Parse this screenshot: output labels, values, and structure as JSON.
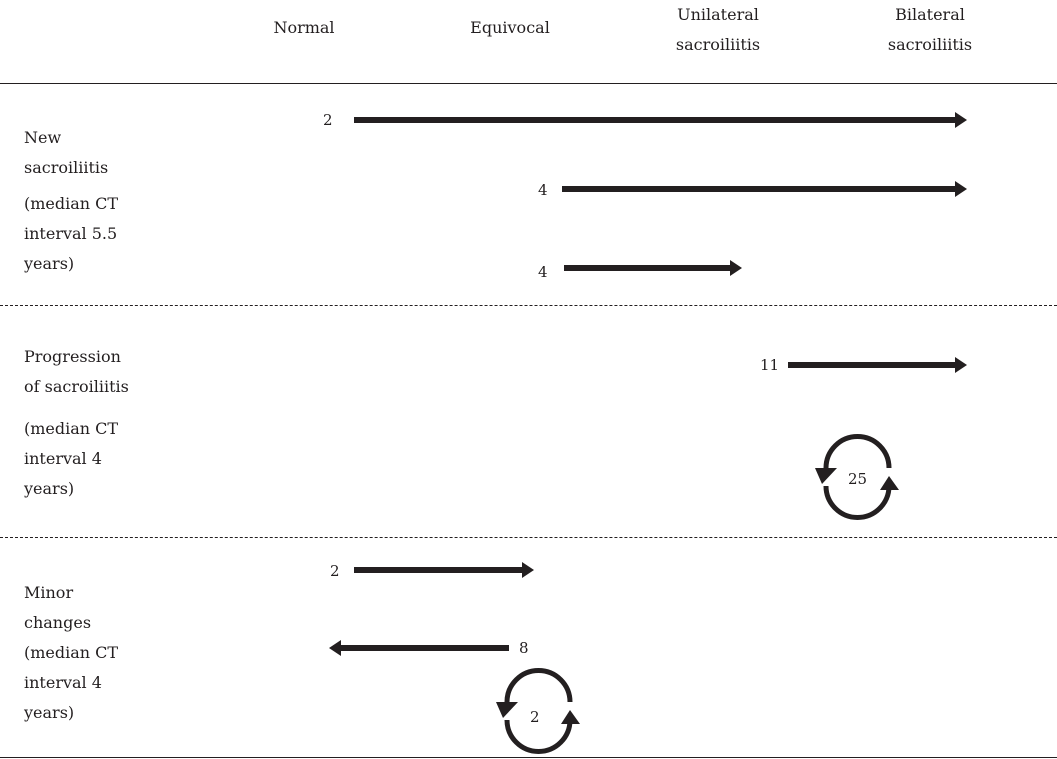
{
  "columns": [
    {
      "label": [
        "Normal"
      ]
    },
    {
      "label": [
        "Equivocal"
      ]
    },
    {
      "label": [
        "Unilateral",
        "sacroiliitis"
      ]
    },
    {
      "label": [
        "Bilateral",
        "sacroiliitis"
      ]
    }
  ],
  "sections": [
    {
      "title": [
        "New",
        "sacroiliitis"
      ],
      "note": [
        "(median CT",
        "interval 5.5",
        "years)"
      ],
      "transitions": [
        {
          "count": "2",
          "from": "Normal",
          "to": "Bilateral sacroiliitis"
        },
        {
          "count": "4",
          "from": "Equivocal",
          "to": "Bilateral sacroiliitis"
        },
        {
          "count": "4",
          "from": "Equivocal",
          "to": "Unilateral sacroiliitis"
        }
      ]
    },
    {
      "title": [
        "Progression",
        "of sacroiliitis"
      ],
      "note": [
        "(median CT",
        "interval 4",
        "years)"
      ],
      "transitions": [
        {
          "count": "11",
          "from": "Unilateral sacroiliitis",
          "to": "Bilateral sacroiliitis"
        },
        {
          "count": "25",
          "from": "Bilateral sacroiliitis",
          "to": "Bilateral sacroiliitis",
          "kind": "unchanged-cycle"
        }
      ]
    },
    {
      "title": [
        "Minor",
        "changes"
      ],
      "note": [
        "(median CT",
        "interval 4",
        "years)"
      ],
      "transitions": [
        {
          "count": "2",
          "from": "Normal",
          "to": "Equivocal"
        },
        {
          "count": "8",
          "from": "Equivocal",
          "to": "Normal"
        },
        {
          "count": "2",
          "from": "Equivocal",
          "to": "Equivocal",
          "kind": "unchanged-cycle"
        }
      ]
    }
  ]
}
